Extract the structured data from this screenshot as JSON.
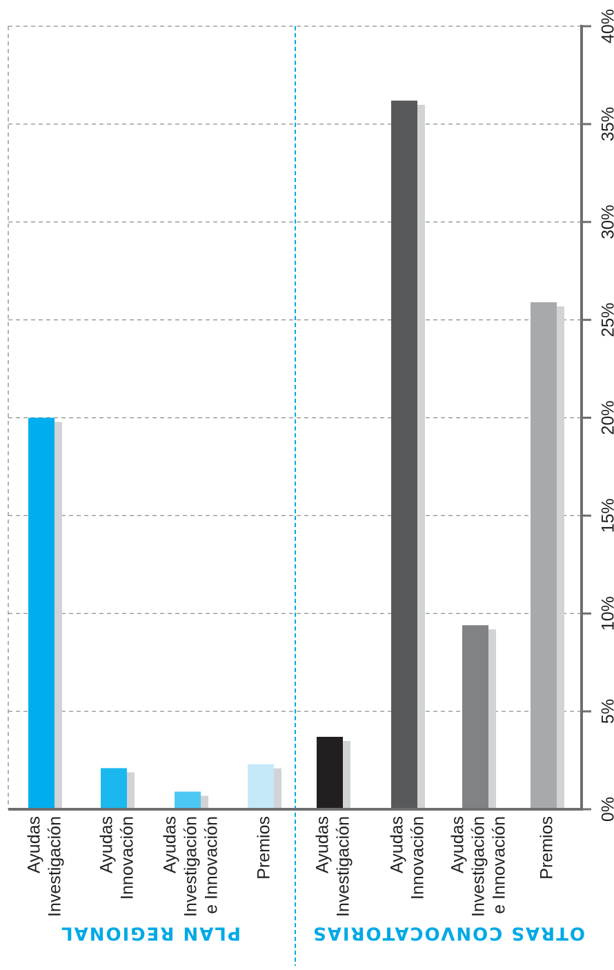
{
  "chart_data": {
    "type": "bar",
    "orientation": "rotated-90",
    "value_axis": {
      "ticks": [
        "0%",
        "5%",
        "10%",
        "15%",
        "20%",
        "25%",
        "30%",
        "35%",
        "40%"
      ],
      "range": [
        0,
        40
      ],
      "grid": true
    },
    "groups": [
      {
        "label": "PLAN REGIONAL",
        "color": "#00a9e6",
        "flipped": true
      },
      {
        "label": "OTRAS CONVOCATORIAS",
        "color": "#00a9e6",
        "flipped": true
      }
    ],
    "categories": [
      {
        "group": 0,
        "lines": [
          "Ayudas",
          "Investigación"
        ],
        "value": 20,
        "color": "#00aeef"
      },
      {
        "group": 0,
        "lines": [
          "Ayudas",
          "Innovación"
        ],
        "value": 2.1,
        "color": "#1bb8f0"
      },
      {
        "group": 0,
        "lines": [
          "Ayudas",
          "Investigación",
          "e Innovación"
        ],
        "value": 0.9,
        "color": "#4dc8f5"
      },
      {
        "group": 0,
        "lines": [
          "Premios"
        ],
        "value": 2.3,
        "color": "#c6e9f9"
      },
      {
        "group": 1,
        "lines": [
          "Ayudas",
          "Investigación"
        ],
        "value": 3.7,
        "color": "#231f20"
      },
      {
        "group": 1,
        "lines": [
          "Ayudas",
          "Innovación"
        ],
        "value": 36.2,
        "color": "#58595b"
      },
      {
        "group": 1,
        "lines": [
          "Ayudas",
          "Investigación",
          "e Innovación"
        ],
        "value": 9.4,
        "color": "#808285"
      },
      {
        "group": 1,
        "lines": [
          "Premios"
        ],
        "value": 25.9,
        "color": "#a7a9ac"
      }
    ],
    "shadow_color": "#d1d3d4",
    "grid_color": "#8a8c8e",
    "divider_color": "#00a9e6"
  }
}
